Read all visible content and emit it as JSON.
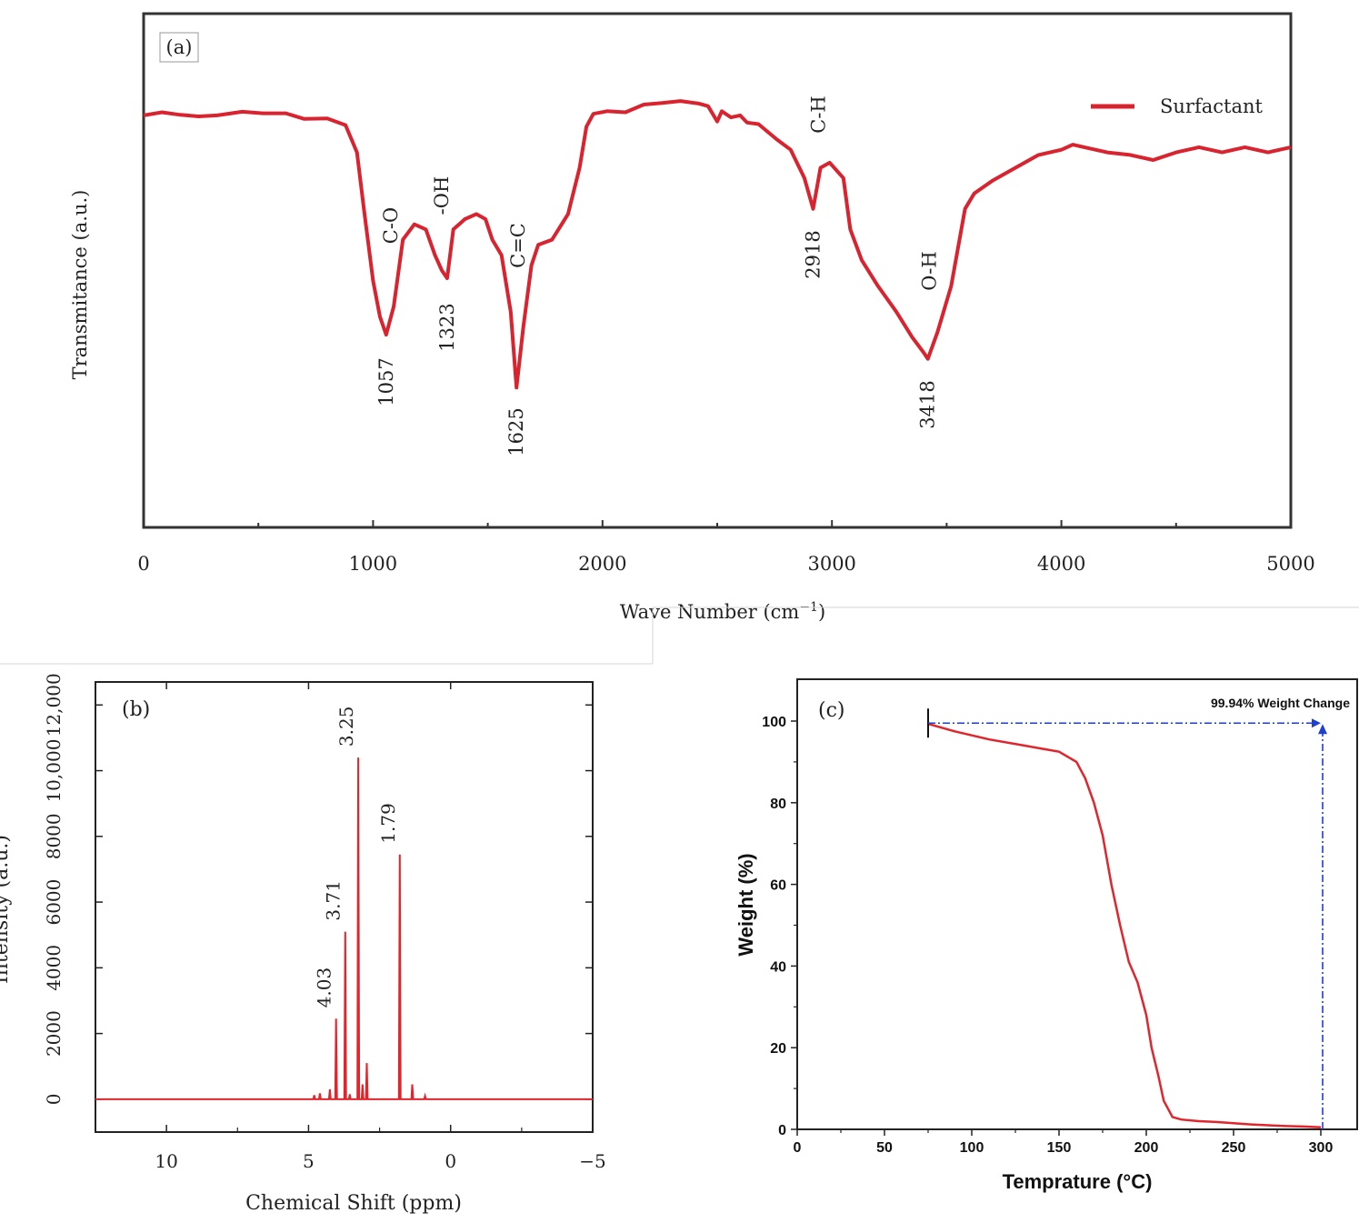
{
  "chart_data": [
    {
      "panel": "a",
      "type": "line",
      "panel_label": "(a)",
      "xlabel": "Wave Number (cm",
      "xlabel_sup": "−1",
      "xlabel_close": ")",
      "ylabel": "Transmitance (a.u.)",
      "xlim": [
        0,
        5000
      ],
      "xticks": [
        0,
        1000,
        2000,
        3000,
        4000,
        5000
      ],
      "ylim": [
        0,
        100
      ],
      "series": [
        {
          "name": "Surfactant",
          "color": "#d9232e",
          "x": [
            0,
            80,
            160,
            240,
            320,
            430,
            520,
            620,
            700,
            800,
            880,
            930,
            960,
            1000,
            1030,
            1057,
            1090,
            1130,
            1180,
            1230,
            1270,
            1300,
            1323,
            1350,
            1400,
            1450,
            1490,
            1520,
            1560,
            1600,
            1625,
            1655,
            1690,
            1720,
            1780,
            1850,
            1900,
            1930,
            1960,
            2020,
            2100,
            2180,
            2260,
            2340,
            2420,
            2460,
            2500,
            2520,
            2560,
            2600,
            2630,
            2680,
            2760,
            2820,
            2880,
            2918,
            2950,
            2990,
            3050,
            3080,
            3130,
            3200,
            3280,
            3350,
            3400,
            3418,
            3460,
            3520,
            3580,
            3620,
            3700,
            3800,
            3900,
            4000,
            4050,
            4100,
            4200,
            4300,
            4400,
            4500,
            4600,
            4700,
            4800,
            4900,
            5000
          ],
          "y": [
            80.2,
            80.8,
            80.3,
            80.0,
            80.2,
            80.9,
            80.6,
            80.6,
            79.5,
            79.6,
            78.3,
            73.0,
            62.0,
            48.0,
            41.0,
            37.5,
            43.0,
            56.0,
            59.0,
            58.0,
            53.0,
            50.0,
            48.5,
            58.0,
            60.0,
            61.0,
            60.0,
            56.0,
            53.0,
            42.0,
            27.2,
            39.0,
            51.0,
            55.0,
            56.0,
            61.0,
            70.0,
            78.0,
            80.5,
            81.0,
            80.8,
            82.3,
            82.6,
            83.0,
            82.5,
            82.0,
            79.0,
            81.0,
            79.8,
            80.2,
            78.8,
            78.5,
            75.5,
            73.5,
            68.0,
            62.0,
            70.0,
            71.0,
            68.0,
            58.0,
            52.0,
            47.0,
            42.0,
            37.0,
            34.0,
            32.8,
            38.0,
            47.0,
            62.0,
            65.0,
            67.5,
            70.0,
            72.5,
            73.5,
            74.5,
            74.0,
            73.0,
            72.5,
            71.5,
            73.0,
            74.0,
            73.0,
            74.0,
            73.0,
            74.0
          ]
        }
      ],
      "annotations": [
        {
          "text": "C-O",
          "x": 1057
        },
        {
          "text": "1057",
          "x": 1057
        },
        {
          "text": "-OH",
          "x": 1323
        },
        {
          "text": "1323",
          "x": 1323
        },
        {
          "text": "C=C",
          "x": 1625
        },
        {
          "text": "1625",
          "x": 1625
        },
        {
          "text": "C-H",
          "x": 2918
        },
        {
          "text": "2918",
          "x": 2918
        },
        {
          "text": "O-H",
          "x": 3418
        },
        {
          "text": "3418",
          "x": 3418
        }
      ],
      "legend_position": "top-right"
    },
    {
      "panel": "b",
      "type": "line",
      "panel_label": "(b)",
      "xlabel": "Chemical Shift (ppm)",
      "ylabel": "Intensity (a.u.)",
      "xlim": [
        12.5,
        -5
      ],
      "xticks": [
        10,
        5,
        0,
        -5
      ],
      "xtick_labels": [
        "10",
        "5",
        "0",
        "−5"
      ],
      "ylim": [
        -1000,
        12700
      ],
      "yticks": [
        0,
        2000,
        4000,
        6000,
        8000,
        10000,
        12000
      ],
      "ytick_labels": [
        "0",
        "2000",
        "4000",
        "6000",
        "8000",
        "10,000",
        "12,000"
      ],
      "series": [
        {
          "name": "",
          "color": "#e0262c",
          "peaks": [
            {
              "x": 4.8,
              "y": 120
            },
            {
              "x": 4.6,
              "y": 180
            },
            {
              "x": 4.25,
              "y": 300
            },
            {
              "x": 4.03,
              "y": 2450
            },
            {
              "x": 3.71,
              "y": 5100
            },
            {
              "x": 3.55,
              "y": 150
            },
            {
              "x": 3.25,
              "y": 10400
            },
            {
              "x": 3.1,
              "y": 450
            },
            {
              "x": 2.95,
              "y": 1100
            },
            {
              "x": 1.79,
              "y": 7450
            },
            {
              "x": 1.35,
              "y": 450
            },
            {
              "x": 0.9,
              "y": 100
            }
          ]
        }
      ],
      "peak_labels": [
        "4.03",
        "3.71",
        "3.25",
        "1.79"
      ]
    },
    {
      "panel": "c",
      "type": "line",
      "panel_label": "(c)",
      "xlabel": "Temprature (°C)",
      "ylabel": "Weight (%)",
      "xlim": [
        0,
        305
      ],
      "xticks": [
        0,
        50,
        100,
        150,
        200,
        250,
        300
      ],
      "ylim": [
        0,
        110
      ],
      "yticks": [
        0,
        20,
        40,
        60,
        80,
        100
      ],
      "series": [
        {
          "name": "",
          "color": "#e0262c",
          "x": [
            75,
            90,
            110,
            130,
            150,
            160,
            165,
            170,
            175,
            180,
            185,
            190,
            195,
            200,
            203,
            207,
            210,
            215,
            220,
            230,
            240,
            250,
            260,
            270,
            280,
            290,
            300
          ],
          "y": [
            99.3,
            97.5,
            95.5,
            94.0,
            92.5,
            90.0,
            86.0,
            80.0,
            72.0,
            60.0,
            50.0,
            41.0,
            36.0,
            28.0,
            20.0,
            13.0,
            7.0,
            3.0,
            2.4,
            2.0,
            1.8,
            1.5,
            1.2,
            1.0,
            0.8,
            0.7,
            0.5
          ]
        }
      ],
      "annotation": {
        "text": "99.94% Weight Change",
        "color": "#1f3fcf",
        "from_x": 75,
        "to_x": 300,
        "at_y": 99.5
      }
    }
  ]
}
